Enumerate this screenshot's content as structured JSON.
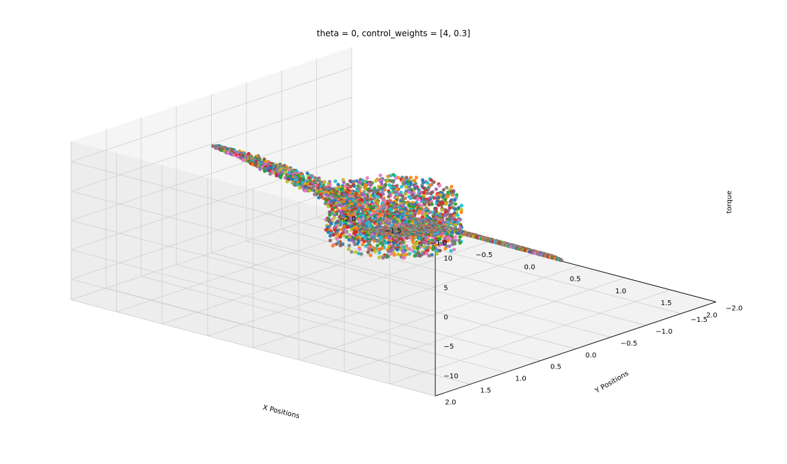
{
  "chart_data": {
    "type": "scatter",
    "projection": "3d",
    "title": "theta = 0, control_weights = [4, 0.3]",
    "xlabel": "X Positions",
    "ylabel": "Y Positions",
    "zlabel": "torque",
    "xlim": [
      -2.0,
      2.0
    ],
    "ylim": [
      -2.0,
      2.0
    ],
    "zlim": [
      -13.5,
      13.5
    ],
    "xticks": [
      "−2.0",
      "−1.5",
      "−1.0",
      "−0.5",
      "0.0",
      "0.5",
      "1.0",
      "1.5",
      "2.0"
    ],
    "yticks": [
      "−2.0",
      "−1.5",
      "−1.0",
      "−0.5",
      "0.0",
      "0.5",
      "1.0",
      "1.5",
      "2.0"
    ],
    "zticks": [
      "−10",
      "−5",
      "0",
      "5",
      "10"
    ],
    "grid": true,
    "palette": [
      "#1f77b4",
      "#ff7f0e",
      "#2ca02c",
      "#d62728",
      "#9467bd",
      "#8c564b",
      "#e377c2",
      "#7f7f7f",
      "#bcbd22",
      "#17becf"
    ],
    "structures": [
      {
        "part": "left-arm",
        "from": [
          -1.95,
          0.0,
          4.8
        ],
        "to": [
          -0.35,
          0.0,
          1.0
        ]
      },
      {
        "part": "upper-right-sheet",
        "from": [
          0.15,
          0.25,
          0.5
        ],
        "to": [
          1.8,
          1.9,
          12.5
        ]
      },
      {
        "part": "lower-sheet",
        "from": [
          0.0,
          -0.25,
          -0.5
        ],
        "to": [
          0.35,
          -1.9,
          -12.5
        ]
      },
      {
        "part": "central-fan",
        "center": [
          0.0,
          0.0,
          0.0
        ],
        "extent": [
          0.6,
          0.6,
          6.5
        ]
      }
    ]
  }
}
